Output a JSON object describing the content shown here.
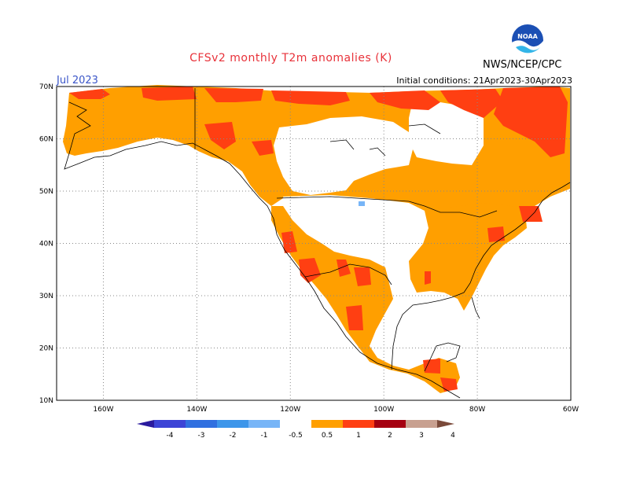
{
  "header": {
    "title": "CFSv2 monthly T2m anomalies (K)",
    "month": "Jul 2023",
    "initial_conditions": "Initial conditions: 21Apr2023-30Apr2023",
    "organization": "NWS/NCEP/CPC",
    "logo_text": "NOAA"
  },
  "map": {
    "lon_range": [
      -170,
      -60
    ],
    "lat_range": [
      10,
      70
    ],
    "lat_labels": [
      "10N",
      "20N",
      "30N",
      "40N",
      "50N",
      "60N",
      "70N"
    ],
    "lon_labels": [
      "160W",
      "140W",
      "120W",
      "100W",
      "80W",
      "60W"
    ],
    "colors": {
      "land_outline": "#000000",
      "grid": "#888888",
      "anom_05_1": "#ff9f00",
      "anom_1_2": "#ff3f12",
      "anom_2_3": "#a50010",
      "anom_neg_05_1": "#77b5f7"
    }
  },
  "legend": {
    "labels": [
      "-4",
      "-3",
      "-2",
      "-1",
      "-0.5",
      "0.5",
      "1",
      "2",
      "3",
      "4"
    ],
    "colors": [
      "#2a1a9e",
      "#3c44d6",
      "#3070e0",
      "#3d96ea",
      "#77b5f7",
      "#ffffff",
      "#ff9f00",
      "#ff3f12",
      "#a50010",
      "#c8a090",
      "#7a4a3a"
    ]
  }
}
